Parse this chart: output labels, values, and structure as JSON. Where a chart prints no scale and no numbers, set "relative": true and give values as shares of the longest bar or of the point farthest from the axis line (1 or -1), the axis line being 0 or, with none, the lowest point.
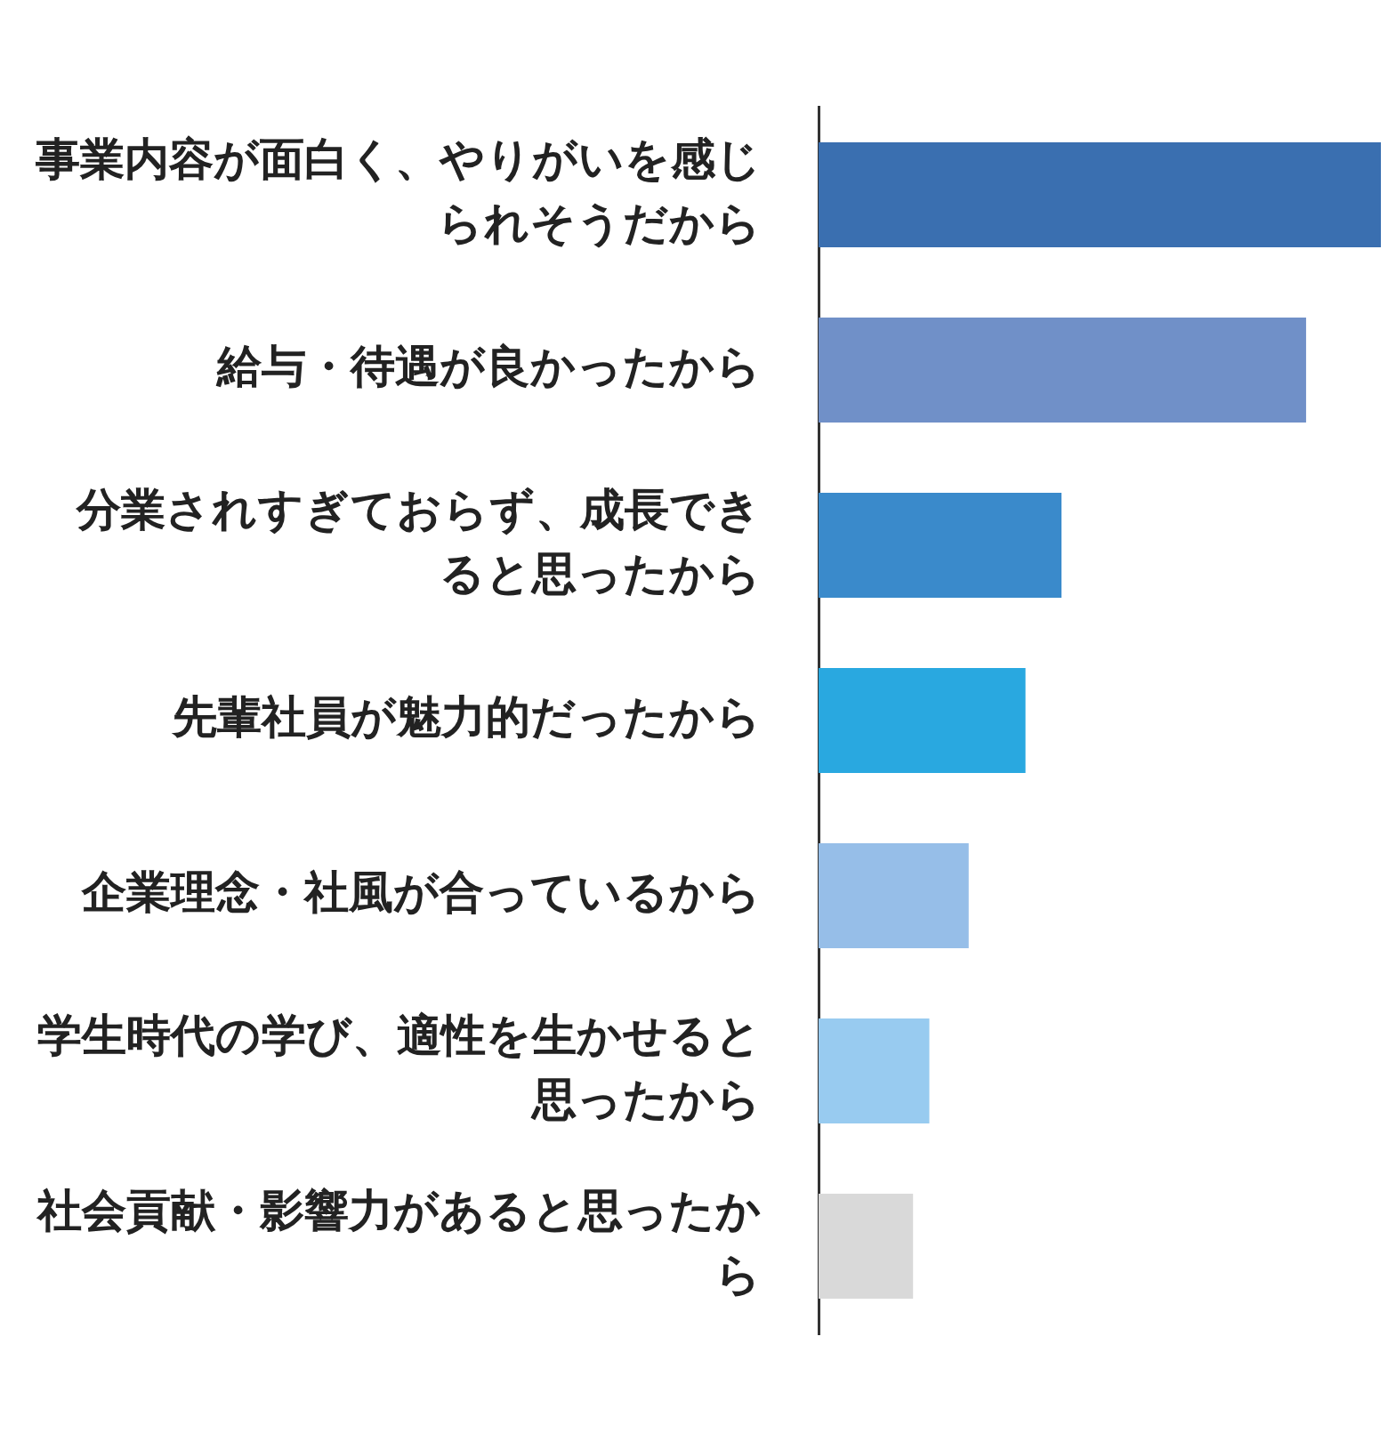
{
  "chart_data": {
    "type": "bar",
    "orientation": "horizontal",
    "relative": true,
    "legend": false,
    "categories": [
      "事業内容が面白く、やりがいを感じられそうだから",
      "給与・待遇が良かったから",
      "分業されすぎておらず、成長できると思ったから",
      "先輩社員が魅力的だったから",
      "企業理念・社風が合っているから",
      "学生時代の学び、適性を生かせると思ったから",
      "社会貢献・影響力があると思ったから"
    ],
    "values": [
      1,
      0.867,
      0.432,
      0.368,
      0.267,
      0.197,
      0.168
    ],
    "colors": [
      "#3a6fb0",
      "#7090c8",
      "#3a8acb",
      "#29a8e0",
      "#96bee8",
      "#98cbf0",
      "#d9d9d9"
    ]
  }
}
